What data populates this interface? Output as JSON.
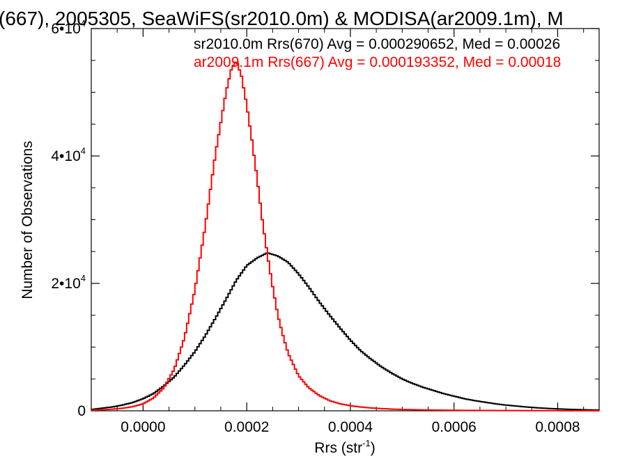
{
  "chart_data": {
    "type": "line",
    "title": "(667), 2005305, SeaWiFS(sr2010.0m) & MODISA(ar2009.1m), M",
    "xlabel": "Rrs (str",
    "xlabel_sup": "-1",
    "xlabel_close": ")",
    "ylabel": "Number of Observations",
    "xlim": [
      -0.0001,
      0.00088
    ],
    "ylim": [
      0,
      60000
    ],
    "x_ticks": [
      0.0,
      0.0002,
      0.0004,
      0.0006,
      0.0008
    ],
    "x_tick_labels": [
      "0.0000",
      "0.0002",
      "0.0004",
      "0.0006",
      "0.0008"
    ],
    "y_ticks": [
      0,
      20000,
      40000,
      60000
    ],
    "y_tick_labels": [
      {
        "mant": "0",
        "exp": ""
      },
      {
        "mant": "2•10",
        "exp": "4"
      },
      {
        "mant": "4•10",
        "exp": "4"
      },
      {
        "mant": "6•10",
        "exp": "4"
      }
    ],
    "grid": false,
    "series": [
      {
        "name": "sr2010.0m Rrs(670)",
        "label": "sr2010.0m Rrs(670) Avg = 0.000290652, Med = 0.00026",
        "color": "#000000",
        "x": [
          -0.0001,
          -8e-05,
          -6e-05,
          -4e-05,
          -2e-05,
          0.0,
          2e-05,
          4e-05,
          6e-05,
          8e-05,
          0.0001,
          0.00012,
          0.00014,
          0.00016,
          0.00018,
          0.0002,
          0.00022,
          0.00024,
          0.00026,
          0.00028,
          0.0003,
          0.00032,
          0.00034,
          0.00036,
          0.00038,
          0.0004,
          0.00042,
          0.00044,
          0.00046,
          0.00048,
          0.0005,
          0.00052,
          0.00054,
          0.00056,
          0.00058,
          0.0006,
          0.00062,
          0.00064,
          0.00066,
          0.00068,
          0.0007,
          0.00072,
          0.00074,
          0.00076,
          0.00078,
          0.0008,
          0.00082,
          0.00084,
          0.00086,
          0.00088
        ],
        "y": [
          200,
          400,
          600,
          900,
          1300,
          1900,
          2700,
          3900,
          5300,
          7200,
          9300,
          11800,
          14600,
          17500,
          20500,
          22800,
          24000,
          24800,
          24300,
          23300,
          21500,
          19400,
          17100,
          15000,
          13000,
          11100,
          9400,
          8100,
          6900,
          5900,
          5000,
          4300,
          3700,
          3200,
          2700,
          2300,
          1900,
          1600,
          1350,
          1100,
          900,
          750,
          600,
          480,
          380,
          300,
          240,
          190,
          150,
          120
        ]
      },
      {
        "name": "ar2009.1m Rrs(667)",
        "label": "ar2009.1m Rrs(667) Avg = 0.000193352, Med = 0.00018",
        "color": "#ff0000",
        "x": [
          -0.0001,
          -8e-05,
          -6e-05,
          -4e-05,
          -2e-05,
          0.0,
          2e-05,
          4e-05,
          6e-05,
          8e-05,
          0.0001,
          0.00012,
          0.00014,
          0.00016,
          0.00017,
          0.00018,
          0.00019,
          0.0002,
          0.00021,
          0.00022,
          0.00023,
          0.00024,
          0.00025,
          0.00026,
          0.00027,
          0.00028,
          0.0003,
          0.00032,
          0.00034,
          0.00036,
          0.00038,
          0.0004,
          0.00042,
          0.00044,
          0.00046,
          0.00048,
          0.0005,
          0.00055,
          0.0006,
          0.0007,
          0.0008,
          0.00088
        ],
        "y": [
          100,
          150,
          250,
          400,
          650,
          1100,
          2000,
          3600,
          6500,
          11500,
          19000,
          29000,
          40500,
          50000,
          53500,
          55000,
          52500,
          48000,
          42500,
          36500,
          30000,
          24500,
          19500,
          15000,
          11800,
          9000,
          5500,
          3600,
          2400,
          1600,
          1100,
          800,
          600,
          450,
          350,
          270,
          210,
          130,
          80,
          40,
          20,
          10
        ]
      }
    ]
  }
}
